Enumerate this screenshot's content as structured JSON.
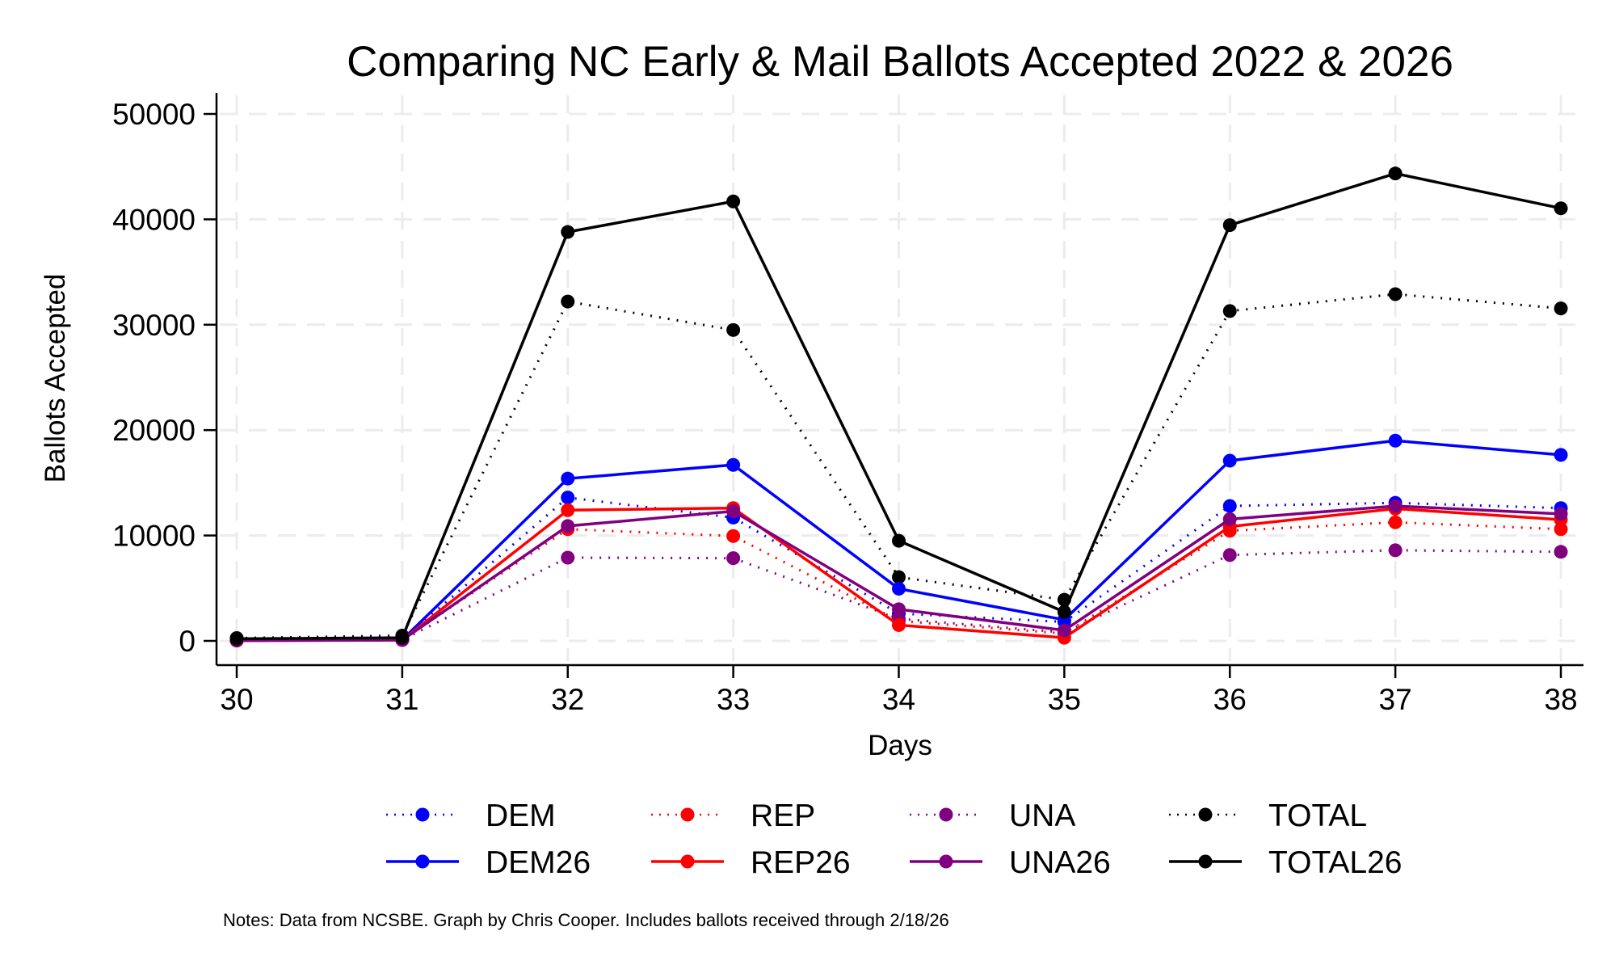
{
  "chart_data": {
    "type": "line",
    "title": "Comparing NC Early & Mail Ballots Accepted 2022 & 2026",
    "xlabel": "Days",
    "ylabel": "Ballots Accepted",
    "x": [
      30,
      31,
      32,
      33,
      34,
      35,
      36,
      37,
      38
    ],
    "x_ticks": [
      "30",
      "31",
      "32",
      "33",
      "34",
      "35",
      "36",
      "37",
      "38"
    ],
    "y_ticks": [
      "0",
      "10000",
      "20000",
      "30000",
      "40000",
      "50000"
    ],
    "y_tick_values": [
      0,
      10000,
      20000,
      30000,
      40000,
      50000
    ],
    "xlim": [
      30,
      38
    ],
    "ylim": [
      0,
      50000
    ],
    "grid": true,
    "legend_position": "bottom",
    "series": [
      {
        "name": "DEM",
        "color": "#0000ff",
        "style": "dotted",
        "values": [
          50,
          100,
          13600,
          11700,
          2600,
          1800,
          12800,
          13100,
          12600
        ]
      },
      {
        "name": "REP",
        "color": "#ff0000",
        "style": "dotted",
        "values": [
          50,
          100,
          10600,
          9950,
          1900,
          700,
          10450,
          11250,
          10600
        ]
      },
      {
        "name": "UNA",
        "color": "#800080",
        "style": "dotted",
        "values": [
          50,
          100,
          7900,
          7850,
          2100,
          800,
          8150,
          8600,
          8450
        ]
      },
      {
        "name": "TOTAL",
        "color": "#000000",
        "style": "dotted",
        "values": [
          270,
          500,
          32200,
          29500,
          6050,
          3900,
          31300,
          32900,
          31550
        ]
      },
      {
        "name": "DEM26",
        "color": "#0000ff",
        "style": "solid",
        "values": [
          50,
          100,
          15400,
          16700,
          4950,
          2000,
          17100,
          19000,
          17650
        ]
      },
      {
        "name": "REP26",
        "color": "#ff0000",
        "style": "solid",
        "values": [
          30,
          80,
          12400,
          12600,
          1500,
          300,
          10850,
          12550,
          11500
        ]
      },
      {
        "name": "UNA26",
        "color": "#800080",
        "style": "solid",
        "values": [
          30,
          80,
          10900,
          12300,
          3000,
          1000,
          11550,
          12800,
          12050
        ]
      },
      {
        "name": "TOTAL26",
        "color": "#000000",
        "style": "solid",
        "values": [
          200,
          300,
          38800,
          41700,
          9500,
          2750,
          39450,
          44350,
          41050
        ]
      }
    ],
    "legend": [
      {
        "label": "DEM",
        "series": 0
      },
      {
        "label": "REP",
        "series": 1
      },
      {
        "label": "UNA",
        "series": 2
      },
      {
        "label": "TOTAL",
        "series": 3
      },
      {
        "label": "DEM26",
        "series": 4
      },
      {
        "label": "REP26",
        "series": 5
      },
      {
        "label": "UNA26",
        "series": 6
      },
      {
        "label": "TOTAL26",
        "series": 7
      }
    ],
    "note": "Notes: Data from NCSBE. Graph by Chris Cooper. Includes ballots received through 2/18/26"
  }
}
